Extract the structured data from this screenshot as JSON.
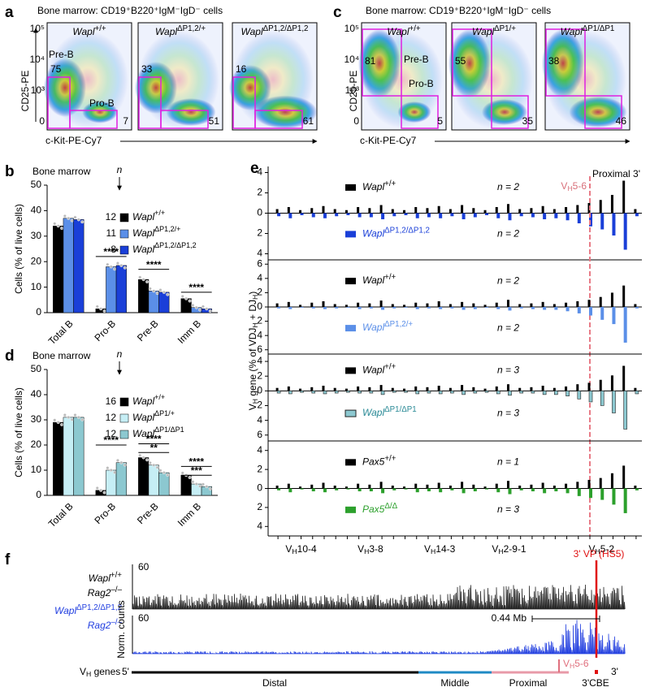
{
  "figure": {
    "a": {
      "letter": "a",
      "title": "Bone marrow: CD19⁺B220⁺IgM⁻IgD⁻ cells",
      "y_axis": "CD25-PE",
      "x_axis": "c-Kit-PE-Cy7",
      "pre_gate": "Pre-B",
      "pro_gate": "Pro-B",
      "log_ticks": [
        "10⁵",
        "10⁴",
        "10³",
        "0"
      ],
      "plots": [
        {
          "gene": "Wapl",
          "allele": "+/+",
          "pre_b": 75,
          "pro_b": 7
        },
        {
          "gene": "Wapl",
          "allele": "ΔP1,2/+",
          "pre_b": 33,
          "pro_b": 51
        },
        {
          "gene": "Wapl",
          "allele": "ΔP1,2/ΔP1,2",
          "pre_b": 16,
          "pro_b": 61
        }
      ]
    },
    "c": {
      "letter": "c",
      "title": "Bone marrow: CD19⁺B220⁺IgM⁻IgD⁻ cells",
      "y_axis": "CD25-PE",
      "x_axis": "c-Kit-PE-Cy7",
      "pre_gate": "Pre-B",
      "pro_gate": "Pro-B",
      "log_ticks": [
        "10⁵",
        "10⁴",
        "10³",
        "0"
      ],
      "plots": [
        {
          "gene": "Wapl",
          "allele": "+/+",
          "pre_b": 81,
          "pro_b": 5
        },
        {
          "gene": "Wapl",
          "allele": "ΔP1/+",
          "pre_b": 55,
          "pro_b": 35
        },
        {
          "gene": "Wapl",
          "allele": "ΔP1/ΔP1",
          "pre_b": 38,
          "pro_b": 46
        }
      ]
    },
    "e": {
      "letter": "e",
      "y_label": "VH gene (% of VDJH + DJH)"
    },
    "f": {
      "letter": "f",
      "rows": [
        {
          "gene": "Wapl",
          "allele": "+/+",
          "gene2": "Rag2",
          "allele2": "–/–",
          "scale": "60"
        },
        {
          "gene": "Wapl",
          "allele": "ΔP1,2/ΔP1,2",
          "gene2": "Rag2",
          "allele2": "–/–",
          "scale": "60"
        }
      ],
      "y_axis": "Norm. counts",
      "vp_label": "3' VP (HS5)",
      "distance": "0.44 Mb",
      "genes_label": "VH genes",
      "five_prime": "5'",
      "three_prime": "3'",
      "regions": [
        "Distal",
        "Middle",
        "Proximal"
      ],
      "vh56": "VH5-6",
      "cbe": "3'CBE"
    }
  },
  "chart_data": [
    {
      "type": "bar",
      "letter": "b",
      "title": "Bone marrow",
      "n_header": "n",
      "y_label": "Cells (% of live cells)",
      "categories": [
        "Total B",
        "Pro-B",
        "Pre-B",
        "Imm B"
      ],
      "ylim": [
        0,
        50
      ],
      "yticks": [
        0,
        10,
        20,
        30,
        40,
        50
      ],
      "series": [
        {
          "name": "Wapl",
          "allele": "+/+",
          "n": 12,
          "color": "#000000",
          "values": [
            34,
            1.5,
            13,
            5.5
          ]
        },
        {
          "name": "Wapl",
          "allele": "ΔP1,2/+",
          "n": 11,
          "color": "#5b8fe8",
          "values": [
            37,
            18,
            8.5,
            2
          ]
        },
        {
          "name": "Wapl",
          "allele": "ΔP1,2/ΔP1,2",
          "n": 8,
          "color": "#1a3fd8",
          "values": [
            36.5,
            18.5,
            8,
            1.5
          ]
        }
      ],
      "significance": [
        "****",
        "****",
        "****"
      ]
    },
    {
      "type": "bar",
      "letter": "d",
      "title": "Bone marrow",
      "n_header": "n",
      "y_label": "Cells (% of live cells)",
      "categories": [
        "Total B",
        "Pro-B",
        "Pre-B",
        "Imm B"
      ],
      "ylim": [
        0,
        50
      ],
      "yticks": [
        0,
        10,
        20,
        30,
        40,
        50
      ],
      "series": [
        {
          "name": "Wapl",
          "allele": "+/+",
          "n": 16,
          "color": "#000000",
          "values": [
            29,
            2,
            15,
            8
          ]
        },
        {
          "name": "Wapl",
          "allele": "ΔP1/+",
          "n": 12,
          "color": "#c6eef5",
          "values": [
            31,
            10,
            12,
            4.5
          ]
        },
        {
          "name": "Wapl",
          "allele": "ΔP1/ΔP1",
          "n": 12,
          "color": "#8cc8d0",
          "values": [
            31,
            13,
            9,
            3.5
          ]
        }
      ],
      "significance": [
        "****",
        "****",
        "**",
        "****",
        "***"
      ]
    },
    {
      "type": "mirror-bar",
      "ylim": [
        -4.6,
        4.6
      ],
      "yticks": [
        4,
        2,
        0,
        {
          "value": -2,
          "label": "2"
        },
        {
          "value": -4,
          "label": "4"
        }
      ],
      "annotation": "Proximal 3'",
      "vline": {
        "label": "VH5-6",
        "index": 27
      },
      "series": [
        {
          "name": "Wapl",
          "allele": "+/+",
          "n_label": "n = 2",
          "color": "#000000",
          "values": [
            0.4,
            0.6,
            0.3,
            0.5,
            0.7,
            0.4,
            0.3,
            0.6,
            0.5,
            0.8,
            0.4,
            0.3,
            0.6,
            0.5,
            0.7,
            0.4,
            0.8,
            0.5,
            0.3,
            0.6,
            0.9,
            0.4,
            0.5,
            0.7,
            0.4,
            0.6,
            0.8,
            1.0,
            1.3,
            1.8,
            3.2,
            0.4
          ]
        },
        {
          "name": "Wapl",
          "allele": "ΔP1,2/ΔP1,2",
          "n_label": "n = 2",
          "color": "#1a3fd8",
          "values": [
            0.3,
            0.5,
            0.2,
            0.4,
            0.5,
            0.3,
            0.2,
            0.4,
            0.4,
            0.6,
            0.3,
            0.2,
            0.5,
            0.4,
            0.5,
            0.3,
            0.6,
            0.4,
            0.2,
            0.5,
            0.7,
            0.3,
            0.4,
            0.6,
            0.5,
            0.7,
            1.0,
            1.3,
            1.6,
            2.2,
            3.6,
            0.3
          ]
        }
      ]
    },
    {
      "type": "mirror-bar",
      "ylim": [
        -6.6,
        6.6
      ],
      "yticks": [
        6,
        4,
        2,
        0,
        {
          "value": -2,
          "label": "2"
        },
        {
          "value": -4,
          "label": "4"
        },
        {
          "value": -6,
          "label": "6"
        }
      ],
      "series": [
        {
          "name": "Wapl",
          "allele": "+/+",
          "n_label": "n = 2",
          "color": "#000000",
          "values": [
            0.5,
            0.7,
            0.3,
            0.6,
            0.8,
            0.4,
            0.3,
            0.6,
            0.5,
            0.9,
            0.4,
            0.3,
            0.6,
            0.5,
            0.8,
            0.4,
            0.7,
            0.5,
            0.3,
            0.6,
            1.0,
            0.4,
            0.5,
            0.7,
            0.4,
            0.6,
            0.8,
            1.0,
            1.4,
            2.0,
            3.0,
            0.4
          ]
        },
        {
          "name": "Wapl",
          "allele": "ΔP1,2/+",
          "n_label": "n = 2",
          "color": "#5b8fe8",
          "values": [
            0.2,
            0.3,
            0.1,
            0.2,
            0.3,
            0.2,
            0.1,
            0.3,
            0.2,
            0.4,
            0.2,
            0.1,
            0.3,
            0.2,
            0.3,
            0.2,
            0.4,
            0.3,
            0.1,
            0.3,
            0.5,
            0.2,
            0.3,
            0.4,
            0.4,
            0.6,
            0.9,
            1.2,
            1.8,
            2.4,
            5.0,
            0.2
          ]
        }
      ]
    },
    {
      "type": "mirror-bar",
      "ylim": [
        -6.8,
        5
      ],
      "yticks": [
        4,
        2,
        0,
        {
          "value": -2,
          "label": "2"
        },
        {
          "value": -4,
          "label": "4"
        },
        {
          "value": -6,
          "label": "6"
        }
      ],
      "series": [
        {
          "name": "Wapl",
          "allele": "+/+",
          "n_label": "n = 3",
          "color": "#000000",
          "values": [
            0.4,
            0.6,
            0.3,
            0.5,
            0.7,
            0.4,
            0.3,
            0.6,
            0.5,
            0.8,
            0.4,
            0.3,
            0.6,
            0.5,
            0.7,
            0.4,
            0.8,
            0.5,
            0.3,
            0.6,
            0.9,
            0.4,
            0.5,
            0.7,
            0.4,
            0.6,
            0.9,
            1.1,
            1.5,
            2.1,
            3.4,
            0.4
          ]
        },
        {
          "name": "Wapl",
          "allele": "ΔP1/ΔP1",
          "n_label": "n = 3",
          "color": "#8cc8d0",
          "text_color": "#2a8a96",
          "edgecolor": "#222222",
          "values": [
            0.3,
            0.4,
            0.2,
            0.3,
            0.4,
            0.3,
            0.2,
            0.3,
            0.3,
            0.5,
            0.2,
            0.2,
            0.4,
            0.3,
            0.4,
            0.3,
            0.5,
            0.3,
            0.2,
            0.4,
            0.6,
            0.3,
            0.3,
            0.5,
            0.5,
            0.7,
            1.1,
            1.5,
            2.0,
            3.0,
            5.2,
            0.4
          ]
        }
      ]
    },
    {
      "type": "mirror-bar",
      "ylim": [
        -5,
        5
      ],
      "yticks": [
        4,
        2,
        0,
        {
          "value": -2,
          "label": "2"
        },
        {
          "value": -4,
          "label": "4"
        }
      ],
      "categories": [
        null,
        null,
        "VH10-4",
        null,
        null,
        null,
        null,
        null,
        "VH3-8",
        null,
        null,
        null,
        null,
        null,
        "VH14-3",
        null,
        null,
        null,
        null,
        null,
        "VH2-9-1",
        null,
        null,
        null,
        null,
        null,
        null,
        null,
        "VH5-2",
        null,
        null,
        null
      ],
      "series": [
        {
          "name": "Pax5",
          "allele": "+/+",
          "n_label": "n = 1",
          "color": "#000000",
          "values": [
            0.3,
            0.5,
            0.2,
            0.4,
            0.6,
            0.3,
            0.2,
            0.5,
            0.4,
            0.7,
            0.3,
            0.2,
            0.5,
            0.4,
            0.6,
            0.3,
            0.7,
            0.4,
            0.2,
            0.5,
            0.8,
            0.3,
            0.4,
            0.6,
            0.3,
            0.5,
            0.7,
            0.9,
            1.1,
            1.6,
            2.4,
            0.3
          ]
        },
        {
          "name": "Pax5",
          "allele": "Δ/Δ",
          "n_label": "n = 3",
          "color": "#2ca02c",
          "values": [
            0.2,
            0.4,
            0.1,
            0.3,
            0.4,
            0.2,
            0.1,
            0.3,
            0.3,
            0.5,
            0.2,
            0.1,
            0.4,
            0.3,
            0.4,
            0.2,
            0.5,
            0.3,
            0.1,
            0.4,
            0.6,
            0.2,
            0.3,
            0.5,
            0.3,
            0.5,
            0.8,
            1.0,
            1.2,
            1.7,
            2.6,
            0.2
          ]
        }
      ]
    }
  ]
}
